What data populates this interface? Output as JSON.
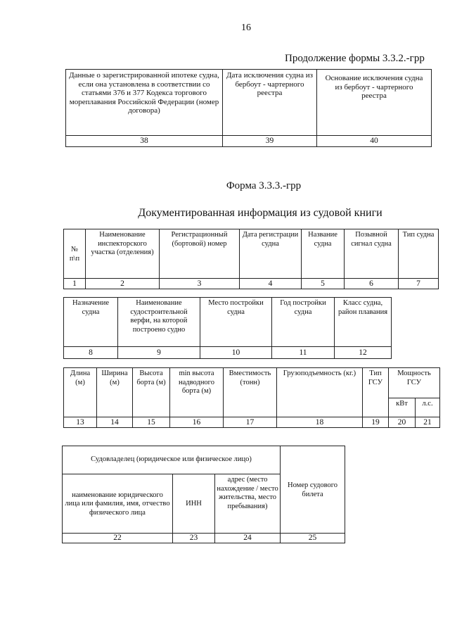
{
  "page_number": "16",
  "continuation_title": "Продолжение формы 3.3.2.-грр",
  "table_332": {
    "headers": [
      "Данные о зарегистрированной ипотеке судна, если она установлена в соответствии со статьями 376 и 377 Кодекса торгового мореплавания Российской Федерации (номер договора)",
      "Дата исключения судна из бербоут - чартерного реестра",
      "Основание исключения судна из бербоут - чартерного реестра"
    ],
    "numbers": [
      "38",
      "39",
      "40"
    ]
  },
  "form_title": "Форма 3.3.3.-грр",
  "document_title": "Документированная информация из судовой книги",
  "table_a": {
    "headers": [
      "№ п\\п",
      "Наименование инспекторского участка (отделения)",
      "Регистрационный (бортовой) номер",
      "Дата регистрации судна",
      "Название судна",
      "Позывной сигнал судна",
      "Тип судна"
    ],
    "numbers": [
      "1",
      "2",
      "3",
      "4",
      "5",
      "6",
      "7"
    ]
  },
  "table_b": {
    "headers": [
      "Назначение судна",
      "Наименование судостроительной верфи, на которой построено судно",
      "Место постройки судна",
      "Год постройки судна",
      "Класс судна, район плавания"
    ],
    "numbers": [
      "8",
      "9",
      "10",
      "11",
      "12"
    ]
  },
  "table_c": {
    "headers": [
      "Длина (м)",
      "Ширина (м)",
      "Высота борта (м)",
      "min высота надводного борта (м)",
      "Вместимость (тонн)",
      "Грузоподъемность (кг.)",
      "Тип ГСУ",
      "Мощность ГСУ"
    ],
    "subheaders": [
      "кВт",
      "л.с."
    ],
    "numbers": [
      "13",
      "14",
      "15",
      "16",
      "17",
      "18",
      "19",
      "20",
      "21"
    ]
  },
  "table_d": {
    "group_header": "Судовладелец (юридическое или физическое лицо)",
    "headers": [
      "наименование юридического лица или фамилия, имя, отчество физического лица",
      "ИНН",
      "адрес (место нахождение / место жительства, место пребывания)",
      "Номер судового билета"
    ],
    "numbers": [
      "22",
      "23",
      "24",
      "25"
    ]
  }
}
